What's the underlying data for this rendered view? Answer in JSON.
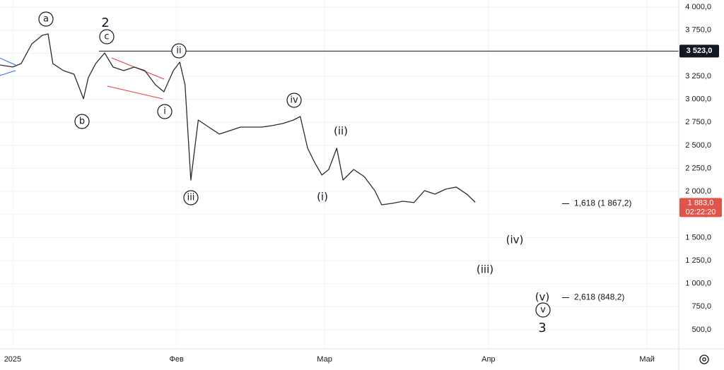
{
  "chart_data": {
    "type": "line",
    "x": [
      -2.4,
      0,
      1.6,
      3.6,
      5.6,
      6.7,
      7.6,
      9.6,
      11.6,
      13.4,
      14.3,
      15.7,
      17.4,
      19.0,
      21.0,
      23.0,
      25.0,
      27.0,
      28.6,
      30.4,
      31.6,
      32.6,
      33.7,
      35.1,
      37.1,
      39.1,
      41.1,
      43.1,
      45.1,
      47.1,
      49.1,
      51.1,
      53.1,
      54.4,
      55.8,
      57.1,
      58.5,
      59.8,
      61.3,
      62.5,
      64.5,
      66.5,
      68.5,
      69.8,
      71.8,
      73.8,
      75.9,
      77.9,
      79.9,
      81.9,
      83.9,
      85.9,
      87.5
    ],
    "series": [
      {
        "color": "#2b2b2b",
        "values": [
          3372,
          3350,
          3387,
          3600,
          3694,
          3709,
          3387,
          3311,
          3273,
          3005,
          3235,
          3387,
          3502,
          3349,
          3311,
          3349,
          3311,
          3158,
          3081,
          3311,
          3403,
          3158,
          2124,
          2775,
          2698,
          2622,
          2660,
          2698,
          2698,
          2698,
          2714,
          2737,
          2775,
          2813,
          2469,
          2316,
          2178,
          2239,
          2469,
          2124,
          2239,
          2162,
          2009,
          1856,
          1871,
          1894,
          1879,
          2009,
          1971,
          2025,
          2048,
          1971,
          1883
        ]
      }
    ],
    "xlim": [
      -2.4,
      126.0
    ],
    "ylim": [
      293,
      4077
    ],
    "xticks": [
      {
        "value": 0,
        "label": "2025"
      },
      {
        "value": 31,
        "label": "Фев"
      },
      {
        "value": 59,
        "label": "Мар"
      },
      {
        "value": 90,
        "label": "Апр"
      },
      {
        "value": 120,
        "label": "Май"
      }
    ],
    "yticks": [
      {
        "value": 500,
        "label": "500,0"
      },
      {
        "value": 750,
        "label": "750,0"
      },
      {
        "value": 1000,
        "label": "1 000,0"
      },
      {
        "value": 1250,
        "label": "1 250,0"
      },
      {
        "value": 1500,
        "label": "1 500,0"
      },
      {
        "value": 1750,
        "label": "1 750,0"
      },
      {
        "value": 2000,
        "label": "2 000,0"
      },
      {
        "value": 2250,
        "label": "2 250,0"
      },
      {
        "value": 2500,
        "label": "2 500,0"
      },
      {
        "value": 2750,
        "label": "2 750,0"
      },
      {
        "value": 3000,
        "label": "3 000,0"
      },
      {
        "value": 3250,
        "label": "3 250,0"
      },
      {
        "value": 3500,
        "label": "3 500,0"
      },
      {
        "value": 3750,
        "label": "3 750,0"
      },
      {
        "value": 4000,
        "label": "4 000,0"
      }
    ],
    "grid": true,
    "level_line": {
      "value": 3523,
      "label": "3 523,0"
    },
    "last_price": {
      "value": 1883,
      "label": "1 883,0",
      "countdown": "02:22:20",
      "color": "#e0544c"
    },
    "fib_levels": [
      {
        "value": 1867.2,
        "label": "1,618 (1 867,2)"
      },
      {
        "value": 848.2,
        "label": "2,618 (848,2)"
      }
    ],
    "waves": [
      {
        "label": "a",
        "circled": true
      },
      {
        "label": "2",
        "circled": false
      },
      {
        "label": "c",
        "circled": true
      },
      {
        "label": "b",
        "circled": true
      },
      {
        "label": "ii",
        "circled": true
      },
      {
        "label": "i",
        "circled": true
      },
      {
        "label": "iii",
        "circled": true
      },
      {
        "label": "iv",
        "circled": true
      },
      {
        "label": "(ii)",
        "circled": false
      },
      {
        "label": "(i)",
        "circled": false
      },
      {
        "label": "(iv)",
        "circled": false
      },
      {
        "label": "(iii)",
        "circled": false
      },
      {
        "label": "(v)",
        "circled": false
      },
      {
        "label": "v",
        "circled": true
      },
      {
        "label": "3",
        "circled": false
      }
    ]
  }
}
